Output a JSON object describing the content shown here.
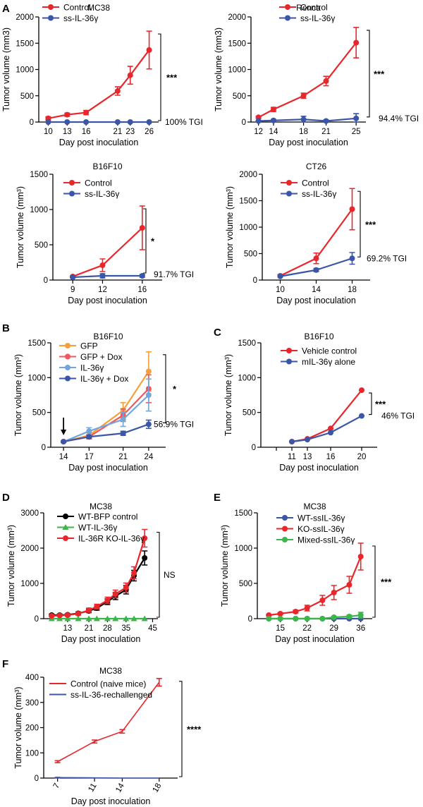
{
  "colors": {
    "red": "#e8262c",
    "blue": "#3b56a6",
    "orange": "#f6a03a",
    "salmon": "#f0575e",
    "lightblue": "#73a6da",
    "green": "#3cb54a",
    "black": "#000000"
  },
  "chart_data": [
    {
      "panel_letter": "A",
      "title": "MC38",
      "type": "line",
      "x": [
        10,
        13,
        16,
        21,
        23,
        26
      ],
      "xticks": [
        "10",
        "13",
        "16",
        "21",
        "23",
        "26"
      ],
      "xlabel": "Day post inoculation",
      "ylabel": "Tumor volume (mm3)",
      "ylim": [
        0,
        2000
      ],
      "yticks": [
        0,
        500,
        1000,
        1500,
        2000
      ],
      "series": [
        {
          "name": "Control",
          "color": "red",
          "marker": "circle",
          "values": [
            70,
            140,
            180,
            590,
            890,
            1370
          ],
          "errors": [
            30,
            30,
            40,
            80,
            170,
            360
          ]
        },
        {
          "name": "ss-IL-36γ",
          "color": "blue",
          "marker": "circle",
          "values": [
            0,
            0,
            0,
            0,
            0,
            0
          ],
          "errors": [
            0,
            0,
            0,
            0,
            0,
            0
          ]
        }
      ],
      "significance": "***",
      "annotation": "100% TGI"
    },
    {
      "panel_letter": "",
      "title": "Renca",
      "type": "line",
      "x": [
        12,
        14,
        18,
        21,
        25
      ],
      "xticks": [
        "12",
        "14",
        "18",
        "21",
        "25"
      ],
      "xlabel": "Day post inoculation",
      "ylabel": "Tumor volume (mm3)",
      "ylim": [
        0,
        2000
      ],
      "yticks": [
        0,
        500,
        1000,
        1500,
        2000
      ],
      "series": [
        {
          "name": "Control",
          "color": "red",
          "marker": "circle",
          "values": [
            90,
            240,
            500,
            780,
            1510
          ],
          "errors": [
            20,
            40,
            50,
            90,
            290
          ]
        },
        {
          "name": "ss-IL-36γ",
          "color": "blue",
          "marker": "circle",
          "values": [
            20,
            30,
            50,
            20,
            70
          ],
          "errors": [
            10,
            20,
            60,
            20,
            90
          ]
        }
      ],
      "significance": "***",
      "annotation": "94.4% TGI"
    },
    {
      "panel_letter": "",
      "title": "B16F10",
      "type": "line",
      "x": [
        9,
        12,
        16
      ],
      "xticks": [
        "9",
        "12",
        "16"
      ],
      "xlabel": "Day post inoculation",
      "ylabel": "Tumor volume (mm³)",
      "ylim": [
        0,
        1500
      ],
      "yticks": [
        0,
        500,
        1000,
        1500
      ],
      "series": [
        {
          "name": "Control",
          "color": "red",
          "marker": "circle",
          "values": [
            50,
            210,
            740
          ],
          "errors": [
            10,
            90,
            310
          ]
        },
        {
          "name": "ss-IL-36γ",
          "color": "blue",
          "marker": "circle",
          "values": [
            40,
            60,
            60
          ],
          "errors": [
            10,
            30,
            20
          ]
        }
      ],
      "significance": "*",
      "annotation": "91.7% TGI"
    },
    {
      "panel_letter": "",
      "title": "CT26",
      "type": "line",
      "x": [
        10,
        14,
        18
      ],
      "xticks": [
        "10",
        "14",
        "18"
      ],
      "xlabel": "Day post inoculation",
      "ylabel": "Tumor volume (mm³)",
      "ylim": [
        0,
        2000
      ],
      "yticks": [
        0,
        500,
        1000,
        1500,
        2000
      ],
      "series": [
        {
          "name": "Control",
          "color": "red",
          "marker": "circle",
          "values": [
            80,
            410,
            1340
          ],
          "errors": [
            20,
            100,
            390
          ]
        },
        {
          "name": "ss-IL-36γ",
          "color": "blue",
          "marker": "circle",
          "values": [
            70,
            190,
            410
          ],
          "errors": [
            10,
            30,
            110
          ]
        }
      ],
      "significance": "***",
      "annotation": "69.2% TGI"
    },
    {
      "panel_letter": "B",
      "title": "B16F10",
      "type": "line",
      "x": [
        14,
        17,
        21,
        24
      ],
      "xticks": [
        "14",
        "17",
        "21",
        "24"
      ],
      "xlabel": "Day post inoculation",
      "ylabel": "Tumor volume (mm³)",
      "ylim": [
        0,
        1500
      ],
      "yticks": [
        0,
        500,
        1000,
        1500
      ],
      "series": [
        {
          "name": "GFP",
          "color": "orange",
          "marker": "circle",
          "values": [
            80,
            170,
            530,
            1090
          ],
          "errors": [
            10,
            40,
            110,
            280
          ]
        },
        {
          "name": "GFP + Dox",
          "color": "salmon",
          "marker": "circle",
          "values": [
            80,
            150,
            460,
            840
          ],
          "errors": [
            10,
            30,
            90,
            200
          ]
        },
        {
          "name": "IL-36γ",
          "color": "lightblue",
          "marker": "circle",
          "values": [
            80,
            230,
            400,
            750
          ],
          "errors": [
            10,
            50,
            100,
            230
          ]
        },
        {
          "name": "IL-36γ + Dox",
          "color": "blue",
          "marker": "circle",
          "values": [
            80,
            150,
            200,
            330
          ],
          "errors": [
            10,
            20,
            30,
            60
          ]
        }
      ],
      "arrow_at_x": 14,
      "significance": "*",
      "annotation": "56.9% TGI"
    },
    {
      "panel_letter": "C",
      "title": "B16F10",
      "type": "line",
      "x": [
        11,
        13,
        16,
        20
      ],
      "xticks": [
        "11",
        "13",
        "16",
        "20"
      ],
      "xlabel": "Day post inoculation",
      "ylabel": "Tumor volume (mm³)",
      "ylim": [
        0,
        1500
      ],
      "yticks": [
        0,
        500,
        1000,
        1500
      ],
      "series": [
        {
          "name": "Vehicle control",
          "color": "red",
          "marker": "circle",
          "values": [
            80,
            120,
            270,
            820
          ],
          "errors": [
            0,
            0,
            0,
            0
          ]
        },
        {
          "name": "mIL-36γ alone",
          "color": "blue",
          "marker": "circle",
          "values": [
            80,
            110,
            210,
            450
          ],
          "errors": [
            0,
            0,
            0,
            0
          ]
        }
      ],
      "significance": "***",
      "annotation": "46% TGI"
    },
    {
      "panel_letter": "D",
      "title": "MC38",
      "type": "line",
      "x": [
        7,
        10,
        13,
        17,
        21,
        24,
        28,
        31,
        35,
        38,
        42,
        45
      ],
      "xticks": [
        "13",
        "21",
        "28",
        "35",
        "45"
      ],
      "xlabel": "Day post inoculation",
      "ylabel": "Tumor volume (mm³)",
      "ylim": [
        0,
        3000
      ],
      "yticks": [
        0,
        1000,
        2000,
        3000
      ],
      "series": [
        {
          "name": "WT-BFP control",
          "color": "black",
          "marker": "circle",
          "values": [
            100,
            100,
            110,
            150,
            220,
            300,
            480,
            640,
            820,
            1220,
            1720,
            null
          ],
          "errors": [
            30,
            30,
            30,
            40,
            50,
            60,
            80,
            100,
            120,
            150,
            200,
            0
          ]
        },
        {
          "name": "WT-IL-36γ",
          "color": "green",
          "marker": "triangle",
          "values": [
            0,
            0,
            0,
            0,
            0,
            0,
            0,
            0,
            0,
            0,
            0,
            null
          ],
          "errors": [
            0,
            0,
            0,
            0,
            0,
            0,
            0,
            0,
            0,
            0,
            0,
            0
          ]
        },
        {
          "name": "IL-36R KO-IL-36γ",
          "color": "red",
          "marker": "circle",
          "values": [
            80,
            90,
            100,
            140,
            240,
            340,
            520,
            700,
            880,
            1300,
            2280,
            null
          ],
          "errors": [
            20,
            20,
            30,
            40,
            60,
            70,
            90,
            110,
            130,
            170,
            250,
            0
          ]
        }
      ],
      "significance": "NS",
      "annotation": ""
    },
    {
      "panel_letter": "E",
      "title": "MC38",
      "type": "line",
      "x": [
        12,
        15,
        19,
        22,
        26,
        29,
        33,
        36
      ],
      "xticks": [
        "15",
        "22",
        "29",
        "36"
      ],
      "xlabel": "Day post inoculation",
      "ylabel": "Tumor volume (mm³)",
      "ylim": [
        0,
        1500
      ],
      "yticks": [
        0,
        500,
        1000,
        1500
      ],
      "series": [
        {
          "name": "WT-ssIL-36γ",
          "color": "blue",
          "marker": "circle",
          "values": [
            0,
            0,
            0,
            0,
            0,
            0,
            0,
            0
          ],
          "errors": [
            0,
            0,
            0,
            0,
            0,
            0,
            0,
            0
          ]
        },
        {
          "name": "KO-ssIL-36γ",
          "color": "red",
          "marker": "circle",
          "values": [
            50,
            70,
            100,
            150,
            260,
            370,
            480,
            880
          ],
          "errors": [
            10,
            15,
            20,
            40,
            70,
            100,
            120,
            190
          ]
        },
        {
          "name": "Mixed-ssIL-36γ",
          "color": "green",
          "marker": "circle",
          "values": [
            0,
            0,
            0,
            0,
            0,
            20,
            30,
            50
          ],
          "errors": [
            0,
            0,
            0,
            0,
            0,
            10,
            20,
            40
          ]
        }
      ],
      "significance": "***",
      "annotation": ""
    },
    {
      "panel_letter": "F",
      "title": "MC38",
      "type": "line",
      "x": [
        7,
        11,
        14,
        18
      ],
      "xticks": [
        "7",
        "11",
        "14",
        "18"
      ],
      "xlabel": "Day post inoculation",
      "ylabel": "Tumor volume (mm³)",
      "ylim": [
        0,
        400
      ],
      "yticks": [
        0,
        100,
        200,
        300,
        400
      ],
      "series": [
        {
          "name": "Control (naive mice)",
          "color": "red",
          "marker": "none",
          "values": [
            65,
            145,
            185,
            380
          ],
          "errors": [
            4,
            6,
            7,
            15
          ]
        },
        {
          "name": "ss-IL-36-rechallenged",
          "color": "blue",
          "marker": "none",
          "values": [
            2,
            1,
            0,
            0
          ],
          "errors": [
            1,
            0,
            0,
            0
          ]
        }
      ],
      "significance": "****",
      "annotation": ""
    }
  ]
}
